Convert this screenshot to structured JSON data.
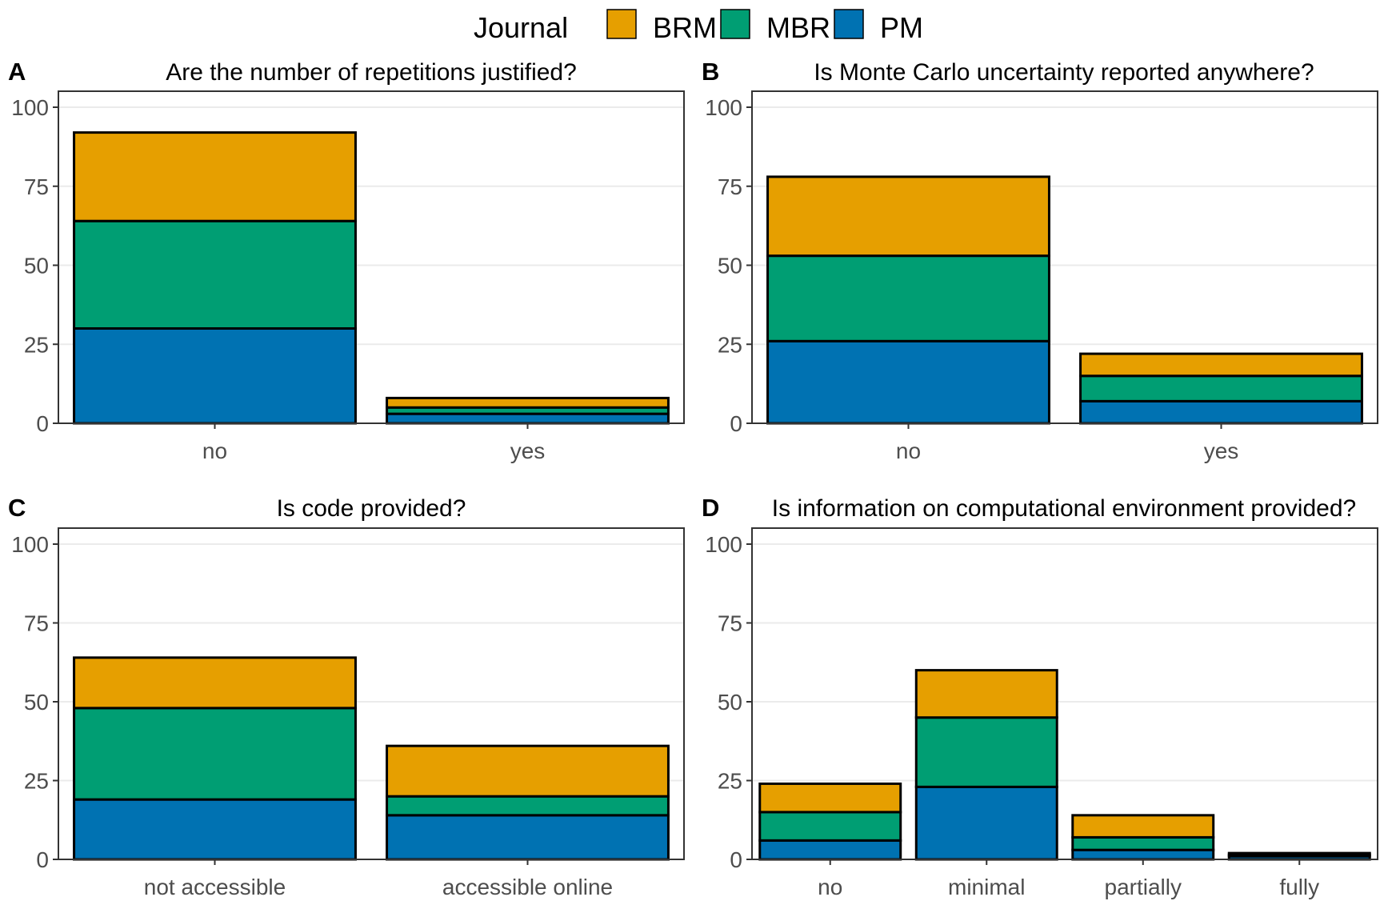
{
  "legend": {
    "title": "Journal",
    "items": [
      {
        "name": "BRM",
        "color": "#E69F00"
      },
      {
        "name": "MBR",
        "color": "#009E73"
      },
      {
        "name": "PM",
        "color": "#0072B2"
      }
    ]
  },
  "chart_data": [
    {
      "type": "bar",
      "stacked": true,
      "panel_label": "A",
      "title": "Are the number of repetitions justified?",
      "categories": [
        "no",
        "yes"
      ],
      "series": [
        {
          "name": "PM",
          "values": [
            30,
            3
          ]
        },
        {
          "name": "MBR",
          "values": [
            34,
            2
          ]
        },
        {
          "name": "BRM",
          "values": [
            28,
            3
          ]
        }
      ],
      "ylim": [
        0,
        100
      ],
      "yticks": [
        0,
        25,
        50,
        75,
        100
      ],
      "grid": true,
      "legend_position": "top"
    },
    {
      "type": "bar",
      "stacked": true,
      "panel_label": "B",
      "title": "Is Monte Carlo uncertainty reported anywhere?",
      "categories": [
        "no",
        "yes"
      ],
      "series": [
        {
          "name": "PM",
          "values": [
            26,
            7
          ]
        },
        {
          "name": "MBR",
          "values": [
            27,
            8
          ]
        },
        {
          "name": "BRM",
          "values": [
            25,
            7
          ]
        }
      ],
      "ylim": [
        0,
        100
      ],
      "yticks": [
        0,
        25,
        50,
        75,
        100
      ],
      "grid": true,
      "legend_position": "top"
    },
    {
      "type": "bar",
      "stacked": true,
      "panel_label": "C",
      "title": "Is code provided?",
      "categories": [
        "not accessible",
        "accessible online"
      ],
      "series": [
        {
          "name": "PM",
          "values": [
            19,
            14
          ]
        },
        {
          "name": "MBR",
          "values": [
            29,
            6
          ]
        },
        {
          "name": "BRM",
          "values": [
            16,
            16
          ]
        }
      ],
      "ylim": [
        0,
        100
      ],
      "yticks": [
        0,
        25,
        50,
        75,
        100
      ],
      "grid": true,
      "legend_position": "top"
    },
    {
      "type": "bar",
      "stacked": true,
      "panel_label": "D",
      "title": "Is information on computational environment provided?",
      "categories": [
        "no",
        "minimal",
        "partially",
        "fully"
      ],
      "series": [
        {
          "name": "PM",
          "values": [
            6,
            23,
            3,
            1
          ]
        },
        {
          "name": "MBR",
          "values": [
            9,
            22,
            4,
            0.5
          ]
        },
        {
          "name": "BRM",
          "values": [
            9,
            15,
            7,
            0.5
          ]
        }
      ],
      "ylim": [
        0,
        100
      ],
      "yticks": [
        0,
        25,
        50,
        75,
        100
      ],
      "grid": true,
      "legend_position": "top"
    }
  ]
}
